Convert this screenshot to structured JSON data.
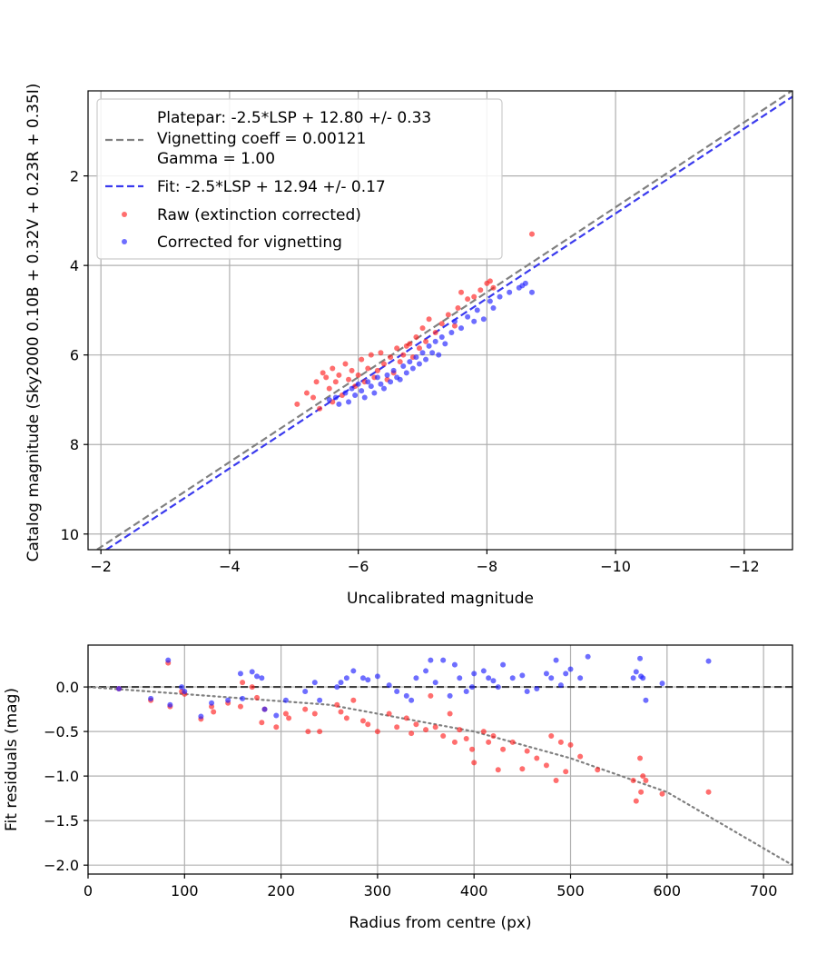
{
  "chart_data": [
    {
      "type": "scatter",
      "xlabel": "Uncalibrated magnitude",
      "ylabel": "Catalog magnitude (Sky2000 0.10B + 0.32V + 0.23R + 0.35I)",
      "xlim": [
        -1.8,
        -12.75
      ],
      "ylim": [
        10.35,
        0.1
      ],
      "x_inverted": true,
      "y_inverted": true,
      "grid": true,
      "legend_placement": "upper-left",
      "x_ticks": [
        -2,
        -4,
        -6,
        -8,
        -10,
        -12
      ],
      "x_tick_labels": [
        "−2",
        "−4",
        "−6",
        "−8",
        "−10",
        "−12"
      ],
      "y_ticks": [
        2,
        4,
        6,
        8,
        10
      ],
      "y_tick_labels": [
        "2",
        "4",
        "6",
        "8",
        "10"
      ],
      "lines": [
        {
          "name": "Platepar: -2.5*LSP + 12.80 +/- 0.33",
          "color": "#808080",
          "style": "dashed",
          "x": [
            -1.8,
            -12.75
          ],
          "y": [
            10.48,
            0.09
          ]
        },
        {
          "name": "Fit: -2.5*LSP + 12.94 +/- 0.17",
          "color": "#3a3aee",
          "style": "dashed",
          "x": [
            -1.8,
            -12.75
          ],
          "y": [
            10.62,
            0.23
          ]
        }
      ],
      "legend_extra_lines": [
        "Vignetting coeff = 0.00121",
        "Gamma = 1.00"
      ],
      "series": [
        {
          "name": "Raw (extinction corrected)",
          "color": "#ff2020",
          "points": [
            [
              -5.05,
              7.1
            ],
            [
              -5.2,
              6.85
            ],
            [
              -5.3,
              6.95
            ],
            [
              -5.35,
              6.6
            ],
            [
              -5.4,
              7.2
            ],
            [
              -5.45,
              6.4
            ],
            [
              -5.5,
              6.5
            ],
            [
              -5.55,
              6.75
            ],
            [
              -5.6,
              6.3
            ],
            [
              -5.6,
              7.05
            ],
            [
              -5.65,
              6.6
            ],
            [
              -5.7,
              6.45
            ],
            [
              -5.75,
              6.9
            ],
            [
              -5.8,
              6.2
            ],
            [
              -5.85,
              6.55
            ],
            [
              -5.9,
              6.35
            ],
            [
              -5.95,
              6.7
            ],
            [
              -6.0,
              6.45
            ],
            [
              -6.05,
              6.1
            ],
            [
              -6.1,
              6.6
            ],
            [
              -6.15,
              6.3
            ],
            [
              -6.2,
              6.0
            ],
            [
              -6.25,
              6.5
            ],
            [
              -6.3,
              6.35
            ],
            [
              -6.35,
              5.95
            ],
            [
              -6.4,
              6.2
            ],
            [
              -6.45,
              6.55
            ],
            [
              -6.5,
              6.05
            ],
            [
              -6.55,
              6.4
            ],
            [
              -6.6,
              5.85
            ],
            [
              -6.65,
              6.15
            ],
            [
              -6.7,
              6.0
            ],
            [
              -6.75,
              5.8
            ],
            [
              -6.8,
              5.75
            ],
            [
              -6.85,
              6.05
            ],
            [
              -6.9,
              5.6
            ],
            [
              -6.95,
              5.85
            ],
            [
              -7.0,
              5.4
            ],
            [
              -7.05,
              5.7
            ],
            [
              -7.1,
              5.2
            ],
            [
              -7.2,
              5.5
            ],
            [
              -7.3,
              5.3
            ],
            [
              -7.4,
              5.1
            ],
            [
              -7.5,
              5.35
            ],
            [
              -7.55,
              4.95
            ],
            [
              -7.6,
              4.6
            ],
            [
              -7.7,
              4.75
            ],
            [
              -7.8,
              4.7
            ],
            [
              -7.9,
              4.55
            ],
            [
              -8.0,
              4.4
            ],
            [
              -8.05,
              4.35
            ],
            [
              -8.1,
              4.5
            ],
            [
              -8.7,
              3.3
            ]
          ]
        },
        {
          "name": "Corrected for vignetting",
          "color": "#2020ff",
          "points": [
            [
              -5.55,
              7.0
            ],
            [
              -5.65,
              6.95
            ],
            [
              -5.7,
              7.1
            ],
            [
              -5.8,
              6.85
            ],
            [
              -5.85,
              7.05
            ],
            [
              -5.9,
              6.75
            ],
            [
              -5.95,
              6.9
            ],
            [
              -6.0,
              6.65
            ],
            [
              -6.05,
              6.8
            ],
            [
              -6.1,
              6.95
            ],
            [
              -6.15,
              6.6
            ],
            [
              -6.2,
              6.7
            ],
            [
              -6.25,
              6.85
            ],
            [
              -6.3,
              6.5
            ],
            [
              -6.35,
              6.65
            ],
            [
              -6.4,
              6.75
            ],
            [
              -6.45,
              6.45
            ],
            [
              -6.5,
              6.6
            ],
            [
              -6.55,
              6.35
            ],
            [
              -6.6,
              6.5
            ],
            [
              -6.65,
              6.55
            ],
            [
              -6.7,
              6.25
            ],
            [
              -6.75,
              6.4
            ],
            [
              -6.8,
              6.15
            ],
            [
              -6.85,
              6.3
            ],
            [
              -6.9,
              6.05
            ],
            [
              -6.95,
              6.2
            ],
            [
              -7.0,
              5.95
            ],
            [
              -7.05,
              6.1
            ],
            [
              -7.1,
              5.8
            ],
            [
              -7.15,
              5.95
            ],
            [
              -7.2,
              5.7
            ],
            [
              -7.25,
              6.0
            ],
            [
              -7.3,
              5.6
            ],
            [
              -7.35,
              5.75
            ],
            [
              -7.45,
              5.5
            ],
            [
              -7.5,
              5.25
            ],
            [
              -7.6,
              5.4
            ],
            [
              -7.7,
              5.15
            ],
            [
              -7.8,
              5.25
            ],
            [
              -7.85,
              5.0
            ],
            [
              -7.95,
              5.2
            ],
            [
              -8.05,
              4.8
            ],
            [
              -8.1,
              4.95
            ],
            [
              -8.2,
              4.7
            ],
            [
              -8.35,
              4.6
            ],
            [
              -8.5,
              4.5
            ],
            [
              -8.55,
              4.45
            ],
            [
              -8.6,
              4.4
            ],
            [
              -8.7,
              4.6
            ]
          ]
        }
      ]
    },
    {
      "type": "scatter",
      "xlabel": "Radius from centre (px)",
      "ylabel": "Fit residuals (mag)",
      "xlim": [
        0,
        730
      ],
      "ylim": [
        -2.1,
        0.47
      ],
      "grid": true,
      "x_ticks": [
        0,
        100,
        200,
        300,
        400,
        500,
        600,
        700
      ],
      "x_tick_labels": [
        "0",
        "100",
        "200",
        "300",
        "400",
        "500",
        "600",
        "700"
      ],
      "y_ticks": [
        0.0,
        -0.5,
        -1.0,
        -1.5,
        -2.0
      ],
      "y_tick_labels": [
        "0.0",
        "−0.5",
        "−1.0",
        "−1.5",
        "−2.0"
      ],
      "lines": [
        {
          "color": "#404040",
          "style": "dashed",
          "x": [
            0,
            730
          ],
          "y": [
            0,
            0
          ]
        },
        {
          "color": "#808080",
          "style": "dotted",
          "curve": "quadratic-through",
          "x": [
            0,
            250,
            400,
            500,
            600,
            730
          ],
          "y": [
            0,
            -0.2,
            -0.5,
            -0.8,
            -1.18,
            -2.0
          ]
        }
      ],
      "series": [
        {
          "name": "Raw (extinction corrected)",
          "color": "#ff2020",
          "points": [
            [
              32,
              -0.02
            ],
            [
              65,
              -0.15
            ],
            [
              83,
              0.27
            ],
            [
              85,
              -0.22
            ],
            [
              97,
              -0.05
            ],
            [
              100,
              -0.08
            ],
            [
              117,
              -0.36
            ],
            [
              128,
              -0.22
            ],
            [
              130,
              -0.28
            ],
            [
              145,
              -0.18
            ],
            [
              158,
              -0.22
            ],
            [
              160,
              0.05
            ],
            [
              170,
              0.0
            ],
            [
              175,
              -0.12
            ],
            [
              180,
              -0.4
            ],
            [
              183,
              -0.25
            ],
            [
              195,
              -0.45
            ],
            [
              205,
              -0.3
            ],
            [
              208,
              -0.35
            ],
            [
              225,
              -0.25
            ],
            [
              228,
              -0.5
            ],
            [
              235,
              -0.3
            ],
            [
              240,
              -0.5
            ],
            [
              258,
              -0.2
            ],
            [
              262,
              -0.28
            ],
            [
              268,
              -0.35
            ],
            [
              275,
              -0.15
            ],
            [
              285,
              -0.38
            ],
            [
              290,
              -0.42
            ],
            [
              300,
              -0.5
            ],
            [
              312,
              -0.3
            ],
            [
              320,
              -0.45
            ],
            [
              330,
              -0.35
            ],
            [
              335,
              -0.52
            ],
            [
              340,
              -0.42
            ],
            [
              350,
              -0.48
            ],
            [
              355,
              -0.1
            ],
            [
              360,
              -0.45
            ],
            [
              368,
              -0.55
            ],
            [
              375,
              -0.3
            ],
            [
              380,
              -0.62
            ],
            [
              385,
              -0.48
            ],
            [
              392,
              -0.58
            ],
            [
              398,
              -0.7
            ],
            [
              400,
              -0.85
            ],
            [
              410,
              -0.5
            ],
            [
              415,
              -0.62
            ],
            [
              420,
              -0.55
            ],
            [
              425,
              -0.93
            ],
            [
              430,
              -0.7
            ],
            [
              440,
              -0.62
            ],
            [
              450,
              -0.92
            ],
            [
              455,
              -0.72
            ],
            [
              465,
              -0.8
            ],
            [
              475,
              -0.88
            ],
            [
              480,
              -0.55
            ],
            [
              485,
              -1.05
            ],
            [
              490,
              -0.62
            ],
            [
              495,
              -0.95
            ],
            [
              500,
              -0.65
            ],
            [
              510,
              -0.78
            ],
            [
              528,
              -0.93
            ],
            [
              565,
              -1.05
            ],
            [
              568,
              -1.28
            ],
            [
              572,
              -0.8
            ],
            [
              573,
              -1.18
            ],
            [
              575,
              -1.0
            ],
            [
              578,
              -1.05
            ],
            [
              595,
              -1.2
            ],
            [
              643,
              -1.18
            ]
          ]
        },
        {
          "name": "Corrected for vignetting",
          "color": "#2020ff",
          "points": [
            [
              32,
              -0.02
            ],
            [
              65,
              -0.13
            ],
            [
              83,
              0.3
            ],
            [
              85,
              -0.2
            ],
            [
              97,
              0.0
            ],
            [
              100,
              -0.05
            ],
            [
              117,
              -0.33
            ],
            [
              128,
              -0.18
            ],
            [
              145,
              -0.15
            ],
            [
              158,
              0.15
            ],
            [
              160,
              -0.13
            ],
            [
              170,
              0.17
            ],
            [
              175,
              0.12
            ],
            [
              180,
              0.1
            ],
            [
              183,
              -0.25
            ],
            [
              195,
              -0.32
            ],
            [
              205,
              -0.15
            ],
            [
              225,
              -0.05
            ],
            [
              235,
              0.05
            ],
            [
              240,
              -0.15
            ],
            [
              258,
              0.0
            ],
            [
              262,
              0.05
            ],
            [
              268,
              0.1
            ],
            [
              275,
              0.18
            ],
            [
              285,
              0.1
            ],
            [
              290,
              0.08
            ],
            [
              300,
              0.12
            ],
            [
              312,
              0.02
            ],
            [
              320,
              -0.05
            ],
            [
              330,
              -0.1
            ],
            [
              335,
              -0.15
            ],
            [
              340,
              0.1
            ],
            [
              350,
              0.18
            ],
            [
              355,
              0.3
            ],
            [
              360,
              0.05
            ],
            [
              368,
              0.3
            ],
            [
              375,
              -0.1
            ],
            [
              380,
              0.25
            ],
            [
              385,
              0.1
            ],
            [
              392,
              -0.05
            ],
            [
              398,
              0.0
            ],
            [
              400,
              0.15
            ],
            [
              410,
              0.18
            ],
            [
              415,
              0.1
            ],
            [
              420,
              0.07
            ],
            [
              425,
              0.0
            ],
            [
              430,
              0.25
            ],
            [
              440,
              0.1
            ],
            [
              450,
              0.13
            ],
            [
              455,
              -0.05
            ],
            [
              465,
              -0.02
            ],
            [
              475,
              0.15
            ],
            [
              480,
              0.1
            ],
            [
              485,
              0.3
            ],
            [
              490,
              0.02
            ],
            [
              495,
              0.15
            ],
            [
              500,
              0.2
            ],
            [
              510,
              0.1
            ],
            [
              518,
              0.34
            ],
            [
              565,
              0.1
            ],
            [
              568,
              0.17
            ],
            [
              572,
              0.32
            ],
            [
              573,
              0.12
            ],
            [
              575,
              0.1
            ],
            [
              578,
              -0.15
            ],
            [
              595,
              0.04
            ],
            [
              643,
              0.29
            ]
          ]
        }
      ]
    }
  ],
  "legend": {
    "title_line": "Platepar: -2.5*LSP + 12.80 +/- 0.33",
    "vignetting_line": "Vignetting coeff = 0.00121",
    "gamma_line": "Gamma = 1.00",
    "fit_line": "Fit: -2.5*LSP + 12.94 +/- 0.17",
    "raw_label": "Raw (extinction corrected)",
    "corrected_label": "Corrected for vignetting"
  }
}
